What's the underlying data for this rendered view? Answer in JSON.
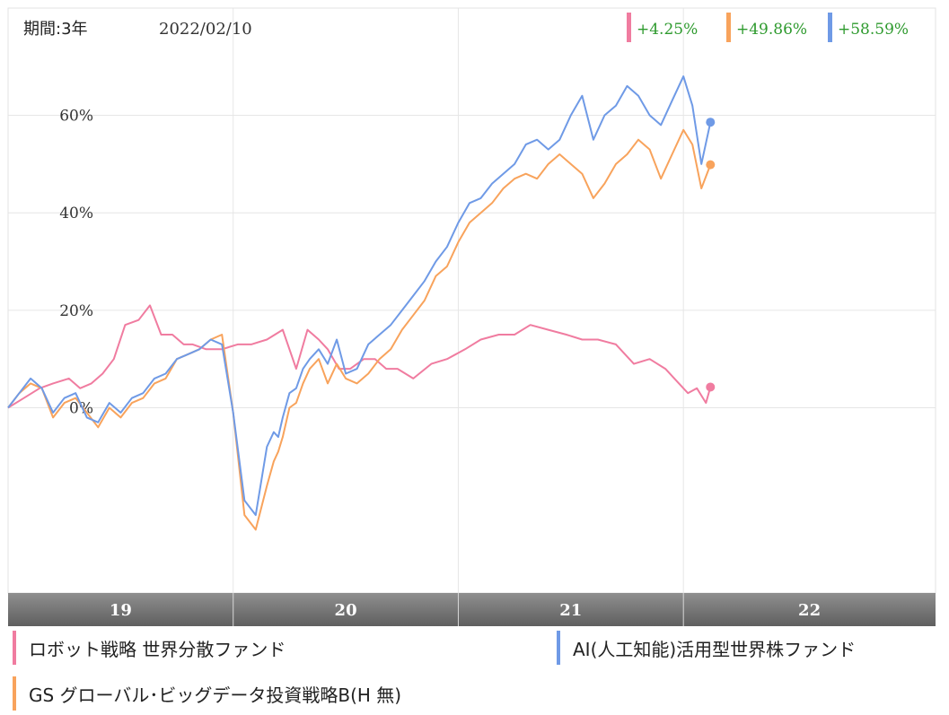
{
  "header": {
    "period_label": "期間:3年",
    "date_label": "2022/02/10"
  },
  "returns": [
    {
      "text": "+4.25%",
      "color": "#f07ca0"
    },
    {
      "text": "+49.86%",
      "color": "#f8a35c"
    },
    {
      "text": "+58.59%",
      "color": "#6f9ae6"
    }
  ],
  "legend": [
    {
      "name": "ロボット戦略 世界分散ファンド",
      "color": "#f07ca0"
    },
    {
      "name": "AI(人工知能)活用型世界株ファンド",
      "color": "#6f9ae6"
    },
    {
      "name": "GS グローバル･ビッグデータ投資戦略B(H 無)",
      "color": "#f8a35c"
    }
  ],
  "chart_data": {
    "type": "line",
    "ylim": [
      -38,
      82
    ],
    "y_ticks": [
      0,
      20,
      40,
      60
    ],
    "y_tick_labels": [
      "0%",
      "20%",
      "40%",
      "60%"
    ],
    "x_range": [
      2018.0,
      2022.12
    ],
    "x_bands": [
      {
        "label": "19",
        "start": 2018.0,
        "end": 2019.0
      },
      {
        "label": "20",
        "start": 2019.0,
        "end": 2020.0
      },
      {
        "label": "21",
        "start": 2020.0,
        "end": 2021.0
      },
      {
        "label": "22",
        "start": 2021.0,
        "end": 2022.12
      }
    ],
    "grid": true,
    "series": [
      {
        "name": "ロボット戦略 世界分散ファンド",
        "color": "#f07ca0",
        "x": [
          2018.0,
          2018.07,
          2018.14,
          2018.2,
          2018.27,
          2018.32,
          2018.37,
          2018.42,
          2018.47,
          2018.52,
          2018.58,
          2018.63,
          2018.68,
          2018.73,
          2018.78,
          2018.82,
          2018.88,
          2018.95,
          2019.02,
          2019.08,
          2019.15,
          2019.22,
          2019.28,
          2019.33,
          2019.38,
          2019.42,
          2019.47,
          2019.52,
          2019.58,
          2019.63,
          2019.68,
          2019.73,
          2019.8,
          2019.88,
          2019.95,
          2020.03,
          2020.1,
          2020.18,
          2020.25,
          2020.32,
          2020.4,
          2020.48,
          2020.55,
          2020.62,
          2020.7,
          2020.78,
          2020.85,
          2020.92,
          2020.98,
          2021.02,
          2021.06,
          2021.1,
          2021.12
        ],
        "y": [
          0,
          2,
          4,
          5,
          6,
          4,
          5,
          7,
          10,
          17,
          18,
          21,
          15,
          15,
          13,
          13,
          12,
          12,
          13,
          13,
          14,
          16,
          8,
          16,
          14,
          12,
          8,
          8,
          10,
          10,
          8,
          8,
          6,
          9,
          10,
          12,
          14,
          15,
          15,
          17,
          16,
          15,
          14,
          14,
          13,
          9,
          10,
          8,
          5,
          3,
          4,
          1,
          4.25
        ]
      },
      {
        "name": "GS グローバル･ビッグデータ投資戦略B(H 無)",
        "color": "#f8a35c",
        "x": [
          2018.0,
          2018.05,
          2018.1,
          2018.15,
          2018.2,
          2018.25,
          2018.3,
          2018.35,
          2018.4,
          2018.45,
          2018.5,
          2018.55,
          2018.6,
          2018.65,
          2018.7,
          2018.75,
          2018.8,
          2018.85,
          2018.9,
          2018.95,
          2019.0,
          2019.05,
          2019.1,
          2019.15,
          2019.18,
          2019.2,
          2019.22,
          2019.25,
          2019.28,
          2019.31,
          2019.34,
          2019.38,
          2019.42,
          2019.46,
          2019.5,
          2019.55,
          2019.6,
          2019.65,
          2019.7,
          2019.75,
          2019.8,
          2019.85,
          2019.9,
          2019.95,
          2020.0,
          2020.05,
          2020.1,
          2020.15,
          2020.2,
          2020.25,
          2020.3,
          2020.35,
          2020.4,
          2020.45,
          2020.5,
          2020.55,
          2020.6,
          2020.65,
          2020.7,
          2020.75,
          2020.8,
          2020.85,
          2020.9,
          2020.95,
          2021.0,
          2021.04,
          2021.08,
          2021.12
        ],
        "y": [
          0,
          3,
          5,
          4,
          -2,
          1,
          2,
          -1,
          -4,
          0,
          -2,
          1,
          2,
          5,
          6,
          10,
          11,
          12,
          14,
          15,
          -1,
          -22,
          -25,
          -16,
          -11,
          -9,
          -6,
          0,
          1,
          5,
          8,
          10,
          5,
          9,
          6,
          5,
          7,
          10,
          12,
          16,
          19,
          22,
          27,
          29,
          34,
          38,
          40,
          42,
          45,
          47,
          48,
          47,
          50,
          52,
          50,
          48,
          43,
          46,
          50,
          52,
          55,
          53,
          47,
          52,
          57,
          54,
          45,
          49.86
        ]
      },
      {
        "name": "AI(人工知能)活用型世界株ファンド",
        "color": "#6f9ae6",
        "x": [
          2018.0,
          2018.05,
          2018.1,
          2018.15,
          2018.2,
          2018.25,
          2018.3,
          2018.35,
          2018.4,
          2018.45,
          2018.5,
          2018.55,
          2018.6,
          2018.65,
          2018.7,
          2018.75,
          2018.8,
          2018.85,
          2018.9,
          2018.95,
          2019.0,
          2019.05,
          2019.1,
          2019.15,
          2019.18,
          2019.2,
          2019.22,
          2019.25,
          2019.28,
          2019.31,
          2019.34,
          2019.38,
          2019.42,
          2019.46,
          2019.5,
          2019.55,
          2019.6,
          2019.65,
          2019.7,
          2019.75,
          2019.8,
          2019.85,
          2019.9,
          2019.95,
          2020.0,
          2020.05,
          2020.1,
          2020.15,
          2020.2,
          2020.25,
          2020.3,
          2020.35,
          2020.4,
          2020.45,
          2020.5,
          2020.55,
          2020.6,
          2020.65,
          2020.7,
          2020.75,
          2020.8,
          2020.85,
          2020.9,
          2020.95,
          2021.0,
          2021.04,
          2021.08,
          2021.12
        ],
        "y": [
          0,
          3,
          6,
          4,
          -1,
          2,
          3,
          -2,
          -3,
          1,
          -1,
          2,
          3,
          6,
          7,
          10,
          11,
          12,
          14,
          13,
          -1,
          -19,
          -22,
          -8,
          -5,
          -6,
          -2,
          3,
          4,
          8,
          10,
          12,
          9,
          14,
          7,
          8,
          13,
          15,
          17,
          20,
          23,
          26,
          30,
          33,
          38,
          42,
          43,
          46,
          48,
          50,
          54,
          55,
          53,
          55,
          60,
          64,
          55,
          60,
          62,
          66,
          64,
          60,
          58,
          63,
          68,
          62,
          50,
          58.59
        ]
      }
    ]
  }
}
